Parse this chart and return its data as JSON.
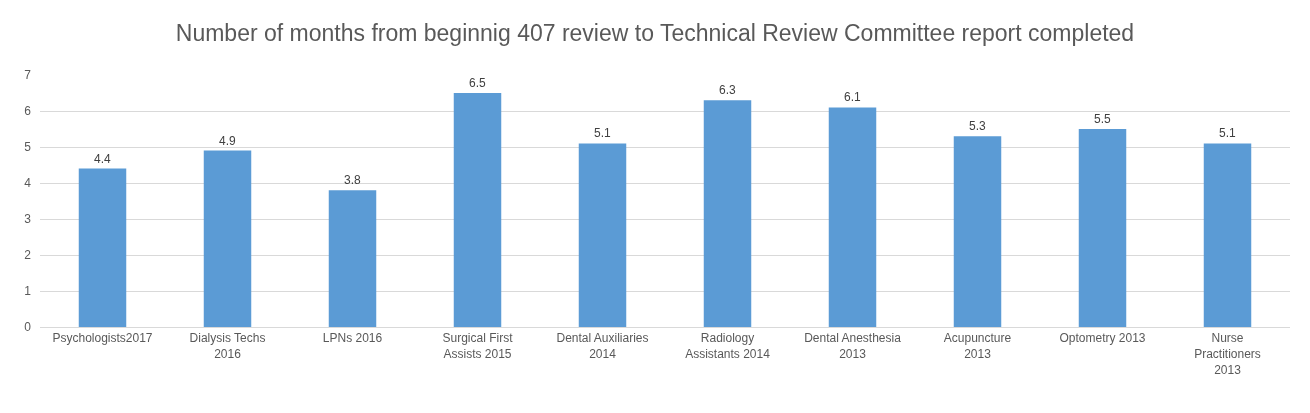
{
  "chart_data": {
    "type": "bar",
    "title": "Number of months from beginnig 407 review to Technical Review Committee report completed",
    "categories": [
      "Psychologists2017",
      "Dialysis Techs\n2016",
      "LPNs 2016",
      "Surgical First\nAssists 2015",
      "Dental Auxiliaries\n2014",
      "Radiology\nAssistants 2014",
      "Dental Anesthesia\n2013",
      "Acupuncture\n2013",
      "Optometry 2013",
      "Nurse\nPractitioners\n2013"
    ],
    "values": [
      4.4,
      4.9,
      3.8,
      6.5,
      5.1,
      6.3,
      6.1,
      5.3,
      5.5,
      5.1
    ],
    "color": "#5b9bd5",
    "ylim": [
      0,
      7
    ],
    "yticks": [
      0,
      1,
      2,
      3,
      4,
      5,
      6,
      7
    ],
    "grid": "y",
    "data_labels": true
  }
}
